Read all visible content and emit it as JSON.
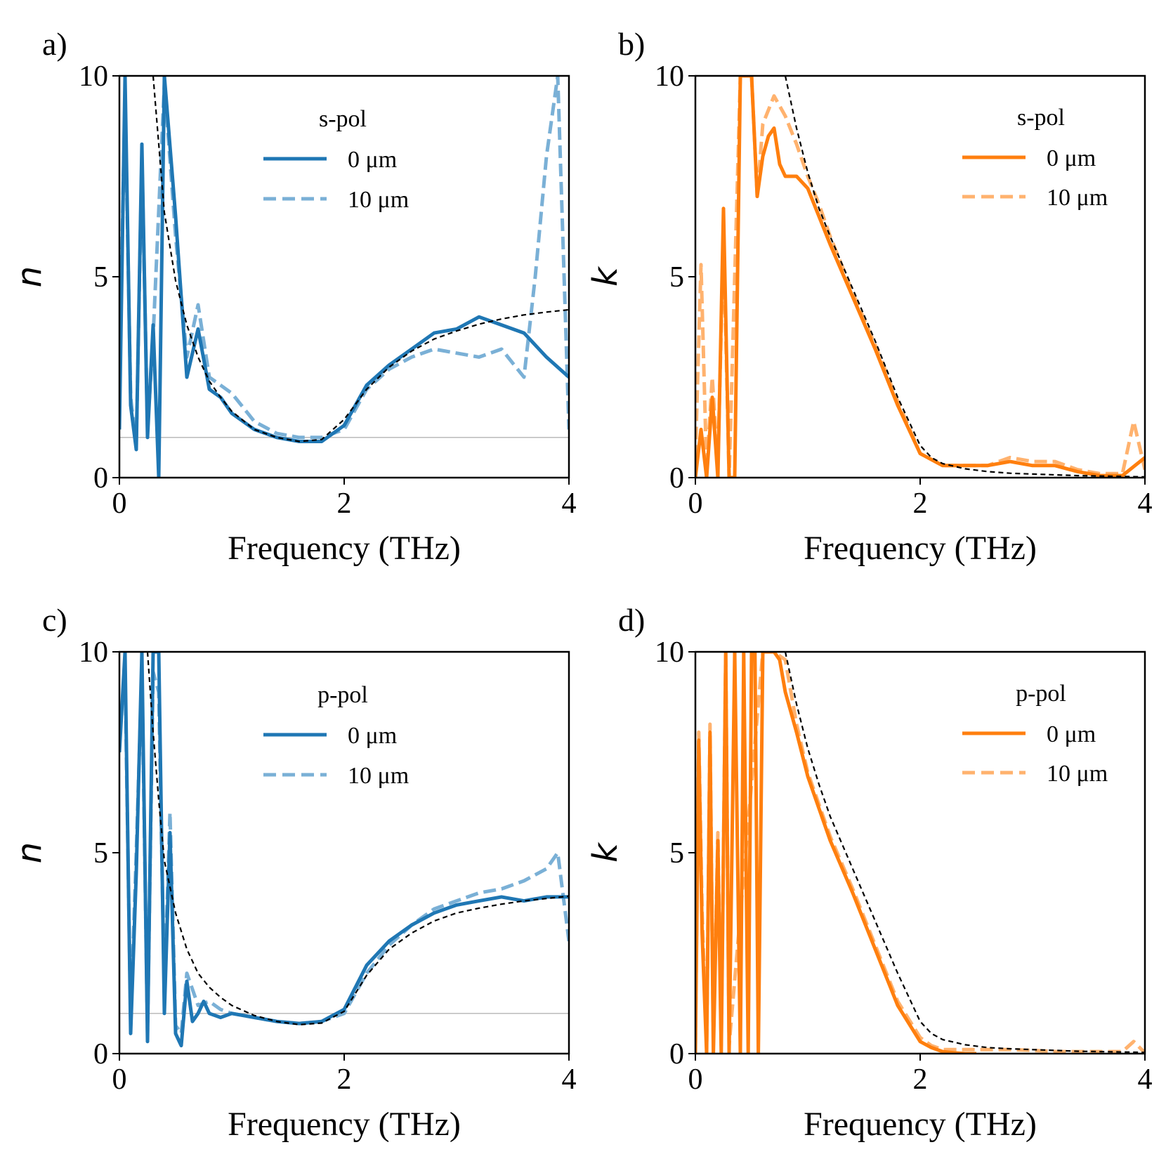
{
  "colors": {
    "blue": "#1f77b4",
    "blue_light": "#7ab0d6",
    "orange": "#ff7f0e",
    "orange_light": "#ffb26e",
    "fit": "#000000",
    "ref_line": "#bbbbbb"
  },
  "chart_data": [
    {
      "id": "a",
      "label": "a)",
      "type": "line",
      "xlabel": "Frequency (THz)",
      "ylabel": "n",
      "xlim": [
        0,
        4
      ],
      "ylim": [
        0,
        10
      ],
      "xticks": [
        "0",
        "2",
        "4"
      ],
      "yticks": [
        "0",
        "5",
        "10"
      ],
      "legend_title": "s-pol",
      "legend_entries": [
        "0 μm",
        "10 μm"
      ],
      "reference_line": 1,
      "series": [
        {
          "name": "0 μm",
          "style": "solid",
          "x": [
            0.0,
            0.05,
            0.1,
            0.15,
            0.2,
            0.25,
            0.3,
            0.35,
            0.4,
            0.5,
            0.6,
            0.7,
            0.8,
            0.9,
            1.0,
            1.2,
            1.4,
            1.6,
            1.8,
            2.0,
            2.2,
            2.4,
            2.6,
            2.8,
            3.0,
            3.2,
            3.4,
            3.6,
            3.8,
            4.0
          ],
          "y": [
            1.2,
            10.0,
            1.8,
            0.7,
            8.3,
            1.0,
            3.8,
            0.0,
            10.0,
            6.5,
            2.5,
            3.7,
            2.2,
            2.0,
            1.6,
            1.2,
            1.0,
            0.9,
            0.9,
            1.3,
            2.3,
            2.8,
            3.2,
            3.6,
            3.7,
            4.0,
            3.8,
            3.6,
            3.0,
            2.5
          ]
        },
        {
          "name": "10 μm",
          "style": "dashed",
          "x": [
            0.0,
            0.05,
            0.1,
            0.15,
            0.2,
            0.25,
            0.3,
            0.4,
            0.5,
            0.6,
            0.7,
            0.8,
            0.9,
            1.0,
            1.2,
            1.4,
            1.6,
            1.8,
            2.0,
            2.2,
            2.4,
            2.6,
            2.8,
            3.0,
            3.2,
            3.4,
            3.6,
            3.7,
            3.8,
            3.9,
            4.0
          ],
          "y": [
            2.5,
            9.5,
            2.0,
            0.8,
            8.0,
            1.2,
            3.5,
            9.8,
            6.0,
            3.0,
            4.3,
            2.5,
            2.3,
            2.1,
            1.4,
            1.1,
            1.0,
            1.0,
            1.2,
            2.2,
            2.7,
            3.0,
            3.2,
            3.1,
            3.0,
            3.2,
            2.5,
            5.0,
            8.0,
            10.0,
            1.2
          ]
        },
        {
          "name": "fit",
          "style": "fit",
          "x": [
            0.3,
            0.4,
            0.5,
            0.6,
            0.7,
            0.8,
            0.9,
            1.0,
            1.2,
            1.4,
            1.6,
            1.8,
            2.0,
            2.2,
            2.4,
            2.6,
            2.8,
            3.0,
            3.2,
            3.4,
            3.6,
            3.8,
            4.0
          ],
          "y": [
            10.0,
            6.6,
            4.9,
            3.8,
            3.0,
            2.4,
            2.0,
            1.65,
            1.2,
            1.0,
            0.9,
            0.95,
            1.45,
            2.2,
            2.75,
            3.15,
            3.45,
            3.65,
            3.82,
            3.95,
            4.05,
            4.12,
            4.18
          ]
        }
      ]
    },
    {
      "id": "b",
      "label": "b)",
      "type": "line",
      "xlabel": "Frequency (THz)",
      "ylabel": "k",
      "xlim": [
        0,
        4
      ],
      "ylim": [
        0,
        10
      ],
      "xticks": [
        "0",
        "2",
        "4"
      ],
      "yticks": [
        "0",
        "5",
        "10"
      ],
      "legend_title": "s-pol",
      "legend_entries": [
        "0 μm",
        "10 μm"
      ],
      "reference_line": null,
      "series": [
        {
          "name": "0 μm",
          "style": "solid",
          "x": [
            0.0,
            0.05,
            0.1,
            0.15,
            0.2,
            0.25,
            0.3,
            0.35,
            0.4,
            0.45,
            0.5,
            0.55,
            0.6,
            0.65,
            0.7,
            0.75,
            0.8,
            0.9,
            1.0,
            1.1,
            1.2,
            1.4,
            1.6,
            1.8,
            2.0,
            2.2,
            2.4,
            2.6,
            2.8,
            3.0,
            3.2,
            3.4,
            3.6,
            3.8,
            4.0
          ],
          "y": [
            0.0,
            1.2,
            0.0,
            2.0,
            0.0,
            6.7,
            0.0,
            0.0,
            10.0,
            10.0,
            10.0,
            7.0,
            8.0,
            8.5,
            8.7,
            7.8,
            7.5,
            7.5,
            7.2,
            6.5,
            5.8,
            4.5,
            3.2,
            1.8,
            0.6,
            0.3,
            0.3,
            0.3,
            0.4,
            0.3,
            0.3,
            0.15,
            0.05,
            0.05,
            0.5
          ]
        },
        {
          "name": "10 μm",
          "style": "dashed",
          "x": [
            0.0,
            0.05,
            0.1,
            0.15,
            0.2,
            0.25,
            0.3,
            0.4,
            0.5,
            0.55,
            0.6,
            0.7,
            0.8,
            0.9,
            1.0,
            1.1,
            1.2,
            1.4,
            1.6,
            1.8,
            2.0,
            2.2,
            2.4,
            2.6,
            2.8,
            3.0,
            3.2,
            3.4,
            3.6,
            3.8,
            3.9,
            4.0
          ],
          "y": [
            0.5,
            5.3,
            0.2,
            2.5,
            0.3,
            6.0,
            0.0,
            10.0,
            10.0,
            7.0,
            8.8,
            9.5,
            9.0,
            8.3,
            7.5,
            6.8,
            6.0,
            4.6,
            3.3,
            1.9,
            0.6,
            0.3,
            0.3,
            0.3,
            0.5,
            0.4,
            0.4,
            0.2,
            0.1,
            0.1,
            1.4,
            0.2
          ]
        },
        {
          "name": "fit",
          "style": "fit",
          "x": [
            0.8,
            0.9,
            1.0,
            1.1,
            1.2,
            1.4,
            1.6,
            1.8,
            2.0,
            2.1,
            2.2,
            2.4,
            2.6,
            2.8,
            3.0,
            3.2,
            3.4,
            3.6,
            3.8,
            4.0
          ],
          "y": [
            10.0,
            8.7,
            7.6,
            6.7,
            6.0,
            4.7,
            3.4,
            2.0,
            0.8,
            0.5,
            0.35,
            0.22,
            0.15,
            0.11,
            0.09,
            0.07,
            0.05,
            0.04,
            0.03,
            0.02
          ]
        }
      ]
    },
    {
      "id": "c",
      "label": "c)",
      "type": "line",
      "xlabel": "Frequency (THz)",
      "ylabel": "n",
      "xlim": [
        0,
        4
      ],
      "ylim": [
        0,
        10
      ],
      "xticks": [
        "0",
        "2",
        "4"
      ],
      "yticks": [
        "0",
        "5",
        "10"
      ],
      "legend_title": "p-pol",
      "legend_entries": [
        "0 μm",
        "10 μm"
      ],
      "reference_line": 1,
      "series": [
        {
          "name": "0 μm",
          "style": "solid",
          "x": [
            0.0,
            0.05,
            0.1,
            0.15,
            0.2,
            0.25,
            0.3,
            0.35,
            0.4,
            0.45,
            0.5,
            0.55,
            0.6,
            0.65,
            0.7,
            0.75,
            0.8,
            0.9,
            1.0,
            1.2,
            1.4,
            1.6,
            1.8,
            2.0,
            2.2,
            2.4,
            2.6,
            2.8,
            3.0,
            3.2,
            3.4,
            3.6,
            3.8,
            4.0
          ],
          "y": [
            7.5,
            10.0,
            0.5,
            4.5,
            10.0,
            0.3,
            10.0,
            10.0,
            1.0,
            5.5,
            0.5,
            0.2,
            1.8,
            0.8,
            1.0,
            1.3,
            1.0,
            0.9,
            1.0,
            0.9,
            0.8,
            0.75,
            0.8,
            1.1,
            2.2,
            2.8,
            3.2,
            3.5,
            3.7,
            3.8,
            3.9,
            3.8,
            3.9,
            3.9
          ]
        },
        {
          "name": "10 μm",
          "style": "dashed",
          "x": [
            0.0,
            0.05,
            0.1,
            0.15,
            0.2,
            0.25,
            0.3,
            0.35,
            0.4,
            0.45,
            0.5,
            0.55,
            0.6,
            0.7,
            0.8,
            0.9,
            1.0,
            1.2,
            1.4,
            1.6,
            1.8,
            2.0,
            2.2,
            2.4,
            2.6,
            2.8,
            3.0,
            3.2,
            3.4,
            3.6,
            3.8,
            3.9,
            4.0
          ],
          "y": [
            8.0,
            9.5,
            0.8,
            5.0,
            9.5,
            0.5,
            9.5,
            9.0,
            1.5,
            6.0,
            0.7,
            0.5,
            2.0,
            1.2,
            1.3,
            1.1,
            1.0,
            0.9,
            0.8,
            0.75,
            0.8,
            1.0,
            2.0,
            2.7,
            3.2,
            3.6,
            3.8,
            4.0,
            4.1,
            4.3,
            4.6,
            5.0,
            2.8
          ]
        },
        {
          "name": "fit",
          "style": "fit",
          "x": [
            0.25,
            0.3,
            0.35,
            0.4,
            0.5,
            0.6,
            0.7,
            0.8,
            0.9,
            1.0,
            1.2,
            1.4,
            1.6,
            1.8,
            2.0,
            2.2,
            2.4,
            2.6,
            2.8,
            3.0,
            3.2,
            3.4,
            3.6,
            3.8,
            4.0
          ],
          "y": [
            10.0,
            8.0,
            6.3,
            4.8,
            3.5,
            2.6,
            2.0,
            1.65,
            1.4,
            1.2,
            0.95,
            0.8,
            0.72,
            0.76,
            1.05,
            1.95,
            2.6,
            3.0,
            3.3,
            3.5,
            3.62,
            3.72,
            3.8,
            3.86,
            3.92
          ]
        }
      ]
    },
    {
      "id": "d",
      "label": "d)",
      "type": "line",
      "xlabel": "Frequency (THz)",
      "ylabel": "k",
      "xlim": [
        0,
        4
      ],
      "ylim": [
        0,
        10
      ],
      "xticks": [
        "0",
        "2",
        "4"
      ],
      "yticks": [
        "0",
        "5",
        "10"
      ],
      "legend_title": "p-pol",
      "legend_entries": [
        "0 μm",
        "10 μm"
      ],
      "reference_line": null,
      "series": [
        {
          "name": "0 μm",
          "style": "solid",
          "x": [
            0.0,
            0.03,
            0.06,
            0.1,
            0.13,
            0.16,
            0.2,
            0.23,
            0.27,
            0.3,
            0.35,
            0.4,
            0.43,
            0.47,
            0.5,
            0.53,
            0.56,
            0.6,
            0.7,
            0.75,
            0.8,
            0.9,
            1.0,
            1.2,
            1.4,
            1.6,
            1.8,
            2.0,
            2.1,
            2.2,
            2.3,
            2.4,
            2.5
          ],
          "y": [
            0.0,
            7.8,
            3.0,
            0.0,
            8.0,
            0.0,
            5.3,
            0.0,
            10.0,
            0.0,
            10.0,
            0.0,
            10.0,
            0.0,
            10.0,
            10.0,
            0.0,
            10.0,
            10.0,
            9.8,
            9.0,
            8.0,
            6.9,
            5.3,
            4.0,
            2.6,
            1.2,
            0.3,
            0.15,
            0.05,
            0.02,
            0.0,
            0.0
          ]
        },
        {
          "name": "10 μm",
          "style": "dashed",
          "x": [
            0.0,
            0.03,
            0.06,
            0.1,
            0.13,
            0.16,
            0.2,
            0.23,
            0.27,
            0.3,
            0.6,
            0.7,
            0.8,
            0.9,
            1.0,
            1.2,
            1.4,
            1.6,
            1.8,
            2.0,
            2.1,
            2.2,
            2.4,
            2.6,
            2.8,
            3.0,
            3.2,
            3.4,
            3.6,
            3.8,
            3.9,
            4.0
          ],
          "y": [
            0.2,
            8.0,
            3.5,
            0.1,
            8.2,
            0.2,
            5.5,
            0.2,
            10.0,
            0.2,
            10.0,
            10.0,
            9.8,
            8.2,
            7.0,
            5.4,
            4.1,
            2.7,
            1.3,
            0.4,
            0.2,
            0.1,
            0.1,
            0.1,
            0.1,
            0.08,
            0.05,
            0.05,
            0.05,
            0.05,
            0.3,
            0.02
          ]
        },
        {
          "name": "fit",
          "style": "fit",
          "x": [
            0.8,
            0.9,
            1.0,
            1.1,
            1.2,
            1.4,
            1.6,
            1.8,
            2.0,
            2.1,
            2.2,
            2.4,
            2.6,
            2.8,
            3.0,
            3.2,
            3.4,
            3.6,
            3.8,
            4.0
          ],
          "y": [
            10.0,
            8.7,
            7.6,
            6.7,
            5.9,
            4.6,
            3.3,
            2.0,
            0.8,
            0.5,
            0.35,
            0.22,
            0.15,
            0.12,
            0.1,
            0.08,
            0.06,
            0.05,
            0.04,
            0.03
          ]
        }
      ]
    }
  ]
}
